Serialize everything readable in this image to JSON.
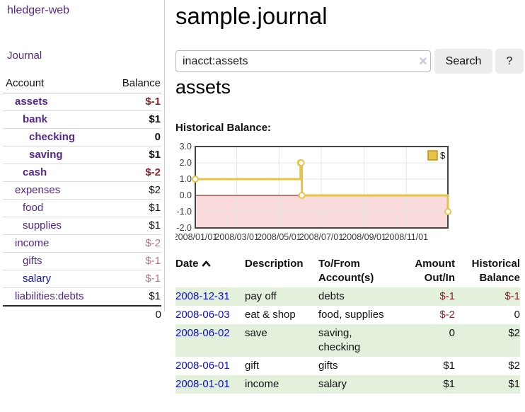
{
  "app": {
    "title": "hledger-web"
  },
  "sidebar": {
    "journal_link": "Journal",
    "table": {
      "account_header": "Account",
      "balance_header": "Balance",
      "accounts": [
        {
          "name": "assets",
          "balance": "$-1",
          "level": 1,
          "bold": true
        },
        {
          "name": "bank",
          "balance": "$1",
          "level": 2,
          "bold": true
        },
        {
          "name": "checking",
          "balance": "0",
          "level": 3,
          "bold": true
        },
        {
          "name": "saving",
          "balance": "$1",
          "level": 3,
          "bold": true
        },
        {
          "name": "cash",
          "balance": "$-2",
          "level": 2,
          "bold": true
        },
        {
          "name": "expenses",
          "balance": "$2",
          "level": 1,
          "bold": false
        },
        {
          "name": "food",
          "balance": "$1",
          "level": 2,
          "bold": false
        },
        {
          "name": "supplies",
          "balance": "$1",
          "level": 2,
          "bold": false
        },
        {
          "name": "income",
          "balance": "$-2",
          "level": 1,
          "bold": false
        },
        {
          "name": "gifts",
          "balance": "$-1",
          "level": 2,
          "bold": false
        },
        {
          "name": "salary",
          "balance": "$-1",
          "level": 2,
          "bold": false,
          "unvisited": true
        },
        {
          "name": "liabilities:debts",
          "balance": "$1",
          "level": 1,
          "bold": false
        }
      ],
      "total": "0"
    }
  },
  "main": {
    "title": "sample.journal",
    "search": {
      "value": "inacct:assets",
      "clear_icon": "×",
      "button_label": "Search",
      "help_label": "?"
    },
    "account_heading": "assets",
    "chart_label": "Historical Balance:"
  },
  "register": {
    "headers": {
      "date": "Date",
      "description": "Description",
      "accounts_line1": "To/From",
      "accounts_line2": "Account(s)",
      "amount_line1": "Amount",
      "amount_line2": "Out/In",
      "balance_line1": "Historical",
      "balance_line2": "Balance"
    },
    "rows": [
      {
        "date": "2008-12-31",
        "description": "pay off",
        "accounts": "debts",
        "amount": "$-1",
        "balance": "$-1"
      },
      {
        "date": "2008-06-03",
        "description": "eat & shop",
        "accounts": "food, supplies",
        "amount": "$-2",
        "balance": "0"
      },
      {
        "date": "2008-06-02",
        "description": "save",
        "accounts": "saving, checking",
        "amount": "0",
        "balance": "$2"
      },
      {
        "date": "2008-06-01",
        "description": "gift",
        "accounts": "gifts",
        "amount": "$1",
        "balance": "$2"
      },
      {
        "date": "2008-01-01",
        "description": "income",
        "accounts": "salary",
        "amount": "$1",
        "balance": "$1"
      }
    ]
  },
  "chart_data": {
    "type": "line",
    "step": true,
    "title": "Historical Balance",
    "series": [
      {
        "name": "$",
        "points": [
          [
            "2008-01-01",
            1.0
          ],
          [
            "2008-06-01",
            2.0
          ],
          [
            "2008-06-02",
            2.0
          ],
          [
            "2008-06-03",
            0.0
          ],
          [
            "2008-12-31",
            -1.0
          ]
        ]
      }
    ],
    "x_ticks": [
      "2008/01/01",
      "2008/03/01",
      "2008/05/01",
      "2008/07/01",
      "2008/09/01",
      "2008/11/01"
    ],
    "y_ticks": [
      3.0,
      2.0,
      1.0,
      0.0,
      -1.0,
      -2.0
    ],
    "xlim": [
      "2008-01-01",
      "2008-12-31"
    ],
    "ylim": [
      -2.0,
      3.0
    ],
    "grid": true,
    "legend_position": "top-right",
    "negative_region_shaded": true,
    "zero_line": true
  },
  "colors": {
    "purple_link": "#54278f",
    "blue_link": "#0f0fd9",
    "negative_strong": "#8f222b",
    "negative_soft": "#b9747c",
    "row_green": "#e2f0dc",
    "chart_gold": "#e9c345",
    "chart_negative_fill": "#f9dada",
    "chart_zero_line": "#8b0000"
  }
}
